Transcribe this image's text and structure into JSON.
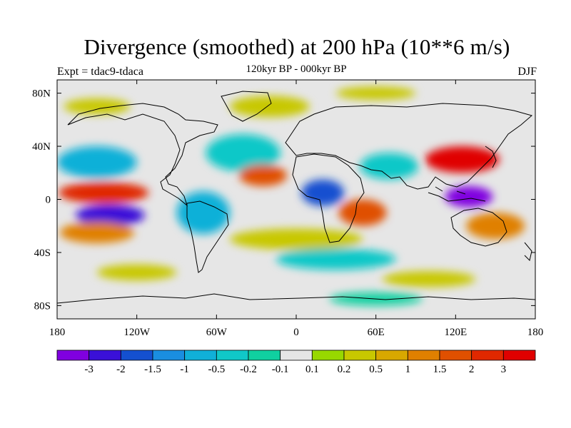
{
  "title": "Divergence (smoothed) at 200 hPa (10**6 m/s)",
  "subtitle": "120kyr BP - 000kyr BP",
  "left_label": "Expt = tdac9-tdaca",
  "right_label": "DJF",
  "map": {
    "projection": "cylindrical equidistant",
    "lon_range": [
      -180,
      180
    ],
    "lat_range": [
      -90,
      90
    ],
    "lon_ticks": [
      {
        "value": -180,
        "label": "180"
      },
      {
        "value": -120,
        "label": "120W"
      },
      {
        "value": -60,
        "label": "60W"
      },
      {
        "value": 0,
        "label": "0"
      },
      {
        "value": 60,
        "label": "60E"
      },
      {
        "value": 120,
        "label": "120E"
      },
      {
        "value": 180,
        "label": "180"
      }
    ],
    "lat_ticks": [
      {
        "value": 80,
        "label": "80N"
      },
      {
        "value": 40,
        "label": "40N"
      },
      {
        "value": 0,
        "label": "0"
      },
      {
        "value": -40,
        "label": "40S"
      },
      {
        "value": -80,
        "label": "80S"
      }
    ],
    "neutral_color": "#e6e6e6"
  },
  "colorbar": {
    "colors": [
      "#8000e0",
      "#3a10d8",
      "#1450d0",
      "#1a8ee0",
      "#10b0d8",
      "#10c8c8",
      "#10d0a0",
      "#e6e6e6",
      "#98d800",
      "#c8c800",
      "#d8a800",
      "#e08000",
      "#e05000",
      "#e02800",
      "#e00000"
    ],
    "labels": [
      "-3",
      "-2",
      "-1.5",
      "-1",
      "-0.5",
      "-0.2",
      "-0.1",
      "0.1",
      "0.2",
      "0.5",
      "1",
      "1.5",
      "2",
      "3"
    ]
  },
  "field_blobs": [
    {
      "lon": -150,
      "lat": 28,
      "rlon": 30,
      "rlat": 12,
      "level": 4
    },
    {
      "lon": -145,
      "lat": 5,
      "rlon": 34,
      "rlat": 8,
      "level": 13
    },
    {
      "lon": -140,
      "lat": -12,
      "rlon": 26,
      "rlat": 8,
      "level": 1
    },
    {
      "lon": -150,
      "lat": -25,
      "rlon": 28,
      "rlat": 8,
      "level": 11
    },
    {
      "lon": -70,
      "lat": -10,
      "rlon": 20,
      "rlat": 16,
      "level": 4
    },
    {
      "lon": -40,
      "lat": 35,
      "rlon": 28,
      "rlat": 14,
      "level": 5
    },
    {
      "lon": -25,
      "lat": 18,
      "rlon": 18,
      "rlat": 8,
      "level": 12
    },
    {
      "lon": 20,
      "lat": 5,
      "rlon": 16,
      "rlat": 10,
      "level": 2
    },
    {
      "lon": 50,
      "lat": -10,
      "rlon": 18,
      "rlat": 10,
      "level": 12
    },
    {
      "lon": 70,
      "lat": 25,
      "rlon": 22,
      "rlat": 10,
      "level": 5
    },
    {
      "lon": 125,
      "lat": 30,
      "rlon": 28,
      "rlat": 10,
      "level": 14
    },
    {
      "lon": 130,
      "lat": 2,
      "rlon": 18,
      "rlat": 8,
      "level": 0
    },
    {
      "lon": 150,
      "lat": -20,
      "rlon": 22,
      "rlat": 10,
      "level": 11
    },
    {
      "lon": 0,
      "lat": -30,
      "rlon": 50,
      "rlat": 8,
      "level": 9
    },
    {
      "lon": 30,
      "lat": -45,
      "rlon": 45,
      "rlat": 8,
      "level": 5
    },
    {
      "lon": -120,
      "lat": -55,
      "rlon": 30,
      "rlat": 6,
      "level": 9
    },
    {
      "lon": 100,
      "lat": -60,
      "rlon": 35,
      "rlat": 6,
      "level": 9
    },
    {
      "lon": 60,
      "lat": -75,
      "rlon": 35,
      "rlat": 5,
      "level": 6
    },
    {
      "lon": -150,
      "lat": 70,
      "rlon": 25,
      "rlat": 6,
      "level": 9
    },
    {
      "lon": -20,
      "lat": 70,
      "rlon": 30,
      "rlat": 8,
      "level": 9
    },
    {
      "lon": 60,
      "lat": 80,
      "rlon": 30,
      "rlat": 5,
      "level": 9
    }
  ]
}
